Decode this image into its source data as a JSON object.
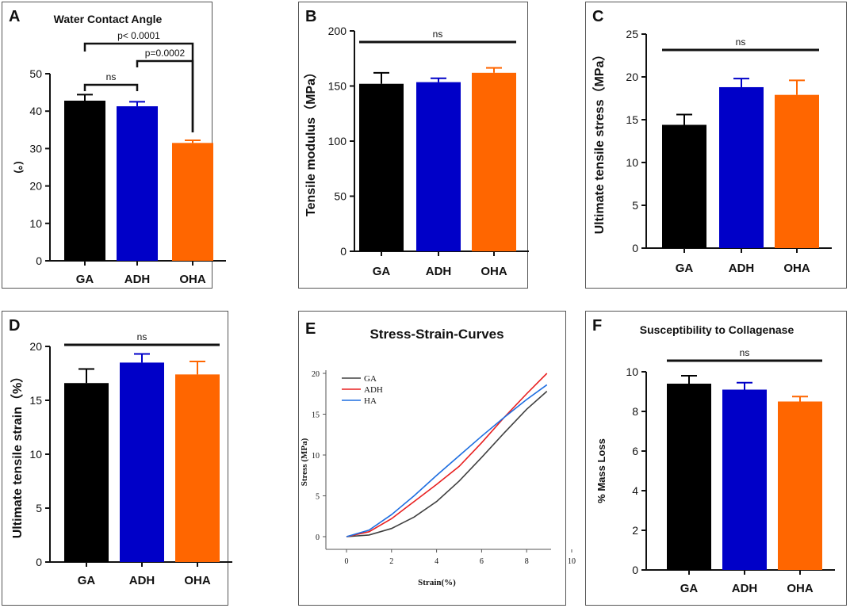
{
  "colors": {
    "GA": "#000000",
    "ADH": "#0000c8",
    "OHA": "#ff6600",
    "HA_line": "#1e6ee0",
    "ADH_line": "#e82020",
    "GA_line": "#404040"
  },
  "chart_data": [
    {
      "id": "A",
      "panel_label": "A",
      "type": "bar",
      "title": "Water Contact Angle",
      "ylabel": "(。)",
      "categories": [
        "GA",
        "ADH",
        "OHA"
      ],
      "values": [
        42.8,
        41.3,
        31.5
      ],
      "errors": [
        1.6,
        1.2,
        0.7
      ],
      "ylim": [
        0,
        50
      ],
      "yticks": [
        "0",
        "10",
        "20",
        "30",
        "40",
        "50"
      ],
      "annotations": [
        {
          "text": "ns",
          "from": 0,
          "to": 1
        },
        {
          "text": "p=0.0002",
          "from": 1,
          "to": 2
        },
        {
          "text": "p< 0.0001",
          "from": 0,
          "to": 2
        }
      ]
    },
    {
      "id": "B",
      "panel_label": "B",
      "type": "bar",
      "title": "",
      "ylabel": "Tensile modulus（MPa）",
      "categories": [
        "GA",
        "ADH",
        "OHA"
      ],
      "values": [
        152,
        153.5,
        162
      ],
      "errors": [
        10,
        3.5,
        4.5
      ],
      "ylim": [
        0,
        200
      ],
      "yticks": [
        "0",
        "50",
        "100",
        "150",
        "200"
      ],
      "annotations": [
        {
          "text": "ns",
          "from": 0,
          "to": 2
        }
      ]
    },
    {
      "id": "C",
      "panel_label": "C",
      "type": "bar",
      "title": "",
      "ylabel": "Ultimate tensile stress（MPa）",
      "categories": [
        "GA",
        "ADH",
        "OHA"
      ],
      "values": [
        14.4,
        18.8,
        17.9
      ],
      "errors": [
        1.2,
        1.0,
        1.7
      ],
      "ylim": [
        0,
        25
      ],
      "yticks": [
        "0",
        "5",
        "10",
        "15",
        "20",
        "25"
      ],
      "annotations": [
        {
          "text": "ns",
          "from": 0,
          "to": 2
        }
      ]
    },
    {
      "id": "D",
      "panel_label": "D",
      "type": "bar",
      "title": "",
      "ylabel": "Ultimate tensile strain（%）",
      "categories": [
        "GA",
        "ADH",
        "OHA"
      ],
      "values": [
        16.6,
        18.5,
        17.4
      ],
      "errors": [
        1.3,
        0.8,
        1.2
      ],
      "ylim": [
        0,
        20
      ],
      "yticks": [
        "0",
        "5",
        "10",
        "15",
        "20"
      ],
      "annotations": [
        {
          "text": "ns",
          "from": 0,
          "to": 2
        }
      ]
    },
    {
      "id": "E",
      "panel_label": "E",
      "type": "line",
      "title": "Stress-Strain-Curves",
      "xlabel": "Strain(%)",
      "ylabel": "Stress (MPa)",
      "xlim": [
        0,
        10
      ],
      "ylim": [
        0,
        20
      ],
      "xticks": [
        "0",
        "2",
        "4",
        "6",
        "8",
        "10"
      ],
      "yticks": [
        "0",
        "5",
        "10",
        "15",
        "20"
      ],
      "series": [
        {
          "name": "GA",
          "x": [
            0,
            1,
            2,
            3,
            4,
            5,
            6,
            7,
            8,
            8.9
          ],
          "y": [
            0,
            0.2,
            1.0,
            2.4,
            4.3,
            6.8,
            9.7,
            12.7,
            15.6,
            17.8
          ]
        },
        {
          "name": "ADH",
          "x": [
            0,
            1,
            2,
            3,
            4,
            5,
            6,
            7,
            8,
            8.9
          ],
          "y": [
            0,
            0.6,
            2.2,
            4.3,
            6.4,
            8.6,
            11.5,
            14.6,
            17.5,
            20.0
          ]
        },
        {
          "name": "HA",
          "x": [
            0,
            1,
            2,
            3,
            4,
            5,
            6,
            7,
            8,
            8.9
          ],
          "y": [
            0,
            0.8,
            2.7,
            5.0,
            7.5,
            9.9,
            12.3,
            14.6,
            16.8,
            18.6
          ]
        }
      ]
    },
    {
      "id": "F",
      "panel_label": "F",
      "type": "bar",
      "title": "Susceptibility to Collagenase",
      "ylabel": "% Mass  Loss",
      "categories": [
        "GA",
        "ADH",
        "OHA"
      ],
      "values": [
        9.4,
        9.1,
        8.5
      ],
      "errors": [
        0.4,
        0.35,
        0.25
      ],
      "ylim": [
        0,
        10
      ],
      "yticks": [
        "0",
        "2",
        "4",
        "6",
        "8",
        "10"
      ],
      "annotations": [
        {
          "text": "ns",
          "from": 0,
          "to": 2
        }
      ]
    }
  ]
}
